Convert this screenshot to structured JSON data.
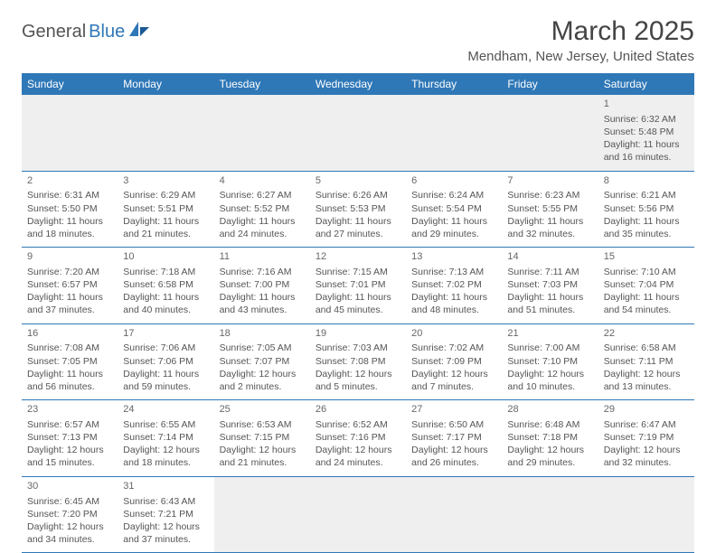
{
  "logo": {
    "text1": "General",
    "text2": "Blue"
  },
  "title": "March 2025",
  "location": "Mendham, New Jersey, United States",
  "colors": {
    "header_bg": "#2f78b7",
    "header_text": "#ffffff",
    "body_text": "#555555",
    "divider": "#2f78b7",
    "empty_bg": "#efefef",
    "page_bg": "#ffffff"
  },
  "day_names": [
    "Sunday",
    "Monday",
    "Tuesday",
    "Wednesday",
    "Thursday",
    "Friday",
    "Saturday"
  ],
  "weeks": [
    [
      null,
      null,
      null,
      null,
      null,
      null,
      {
        "n": "1",
        "sr": "Sunrise: 6:32 AM",
        "ss": "Sunset: 5:48 PM",
        "d1": "Daylight: 11 hours",
        "d2": "and 16 minutes."
      }
    ],
    [
      {
        "n": "2",
        "sr": "Sunrise: 6:31 AM",
        "ss": "Sunset: 5:50 PM",
        "d1": "Daylight: 11 hours",
        "d2": "and 18 minutes."
      },
      {
        "n": "3",
        "sr": "Sunrise: 6:29 AM",
        "ss": "Sunset: 5:51 PM",
        "d1": "Daylight: 11 hours",
        "d2": "and 21 minutes."
      },
      {
        "n": "4",
        "sr": "Sunrise: 6:27 AM",
        "ss": "Sunset: 5:52 PM",
        "d1": "Daylight: 11 hours",
        "d2": "and 24 minutes."
      },
      {
        "n": "5",
        "sr": "Sunrise: 6:26 AM",
        "ss": "Sunset: 5:53 PM",
        "d1": "Daylight: 11 hours",
        "d2": "and 27 minutes."
      },
      {
        "n": "6",
        "sr": "Sunrise: 6:24 AM",
        "ss": "Sunset: 5:54 PM",
        "d1": "Daylight: 11 hours",
        "d2": "and 29 minutes."
      },
      {
        "n": "7",
        "sr": "Sunrise: 6:23 AM",
        "ss": "Sunset: 5:55 PM",
        "d1": "Daylight: 11 hours",
        "d2": "and 32 minutes."
      },
      {
        "n": "8",
        "sr": "Sunrise: 6:21 AM",
        "ss": "Sunset: 5:56 PM",
        "d1": "Daylight: 11 hours",
        "d2": "and 35 minutes."
      }
    ],
    [
      {
        "n": "9",
        "sr": "Sunrise: 7:20 AM",
        "ss": "Sunset: 6:57 PM",
        "d1": "Daylight: 11 hours",
        "d2": "and 37 minutes."
      },
      {
        "n": "10",
        "sr": "Sunrise: 7:18 AM",
        "ss": "Sunset: 6:58 PM",
        "d1": "Daylight: 11 hours",
        "d2": "and 40 minutes."
      },
      {
        "n": "11",
        "sr": "Sunrise: 7:16 AM",
        "ss": "Sunset: 7:00 PM",
        "d1": "Daylight: 11 hours",
        "d2": "and 43 minutes."
      },
      {
        "n": "12",
        "sr": "Sunrise: 7:15 AM",
        "ss": "Sunset: 7:01 PM",
        "d1": "Daylight: 11 hours",
        "d2": "and 45 minutes."
      },
      {
        "n": "13",
        "sr": "Sunrise: 7:13 AM",
        "ss": "Sunset: 7:02 PM",
        "d1": "Daylight: 11 hours",
        "d2": "and 48 minutes."
      },
      {
        "n": "14",
        "sr": "Sunrise: 7:11 AM",
        "ss": "Sunset: 7:03 PM",
        "d1": "Daylight: 11 hours",
        "d2": "and 51 minutes."
      },
      {
        "n": "15",
        "sr": "Sunrise: 7:10 AM",
        "ss": "Sunset: 7:04 PM",
        "d1": "Daylight: 11 hours",
        "d2": "and 54 minutes."
      }
    ],
    [
      {
        "n": "16",
        "sr": "Sunrise: 7:08 AM",
        "ss": "Sunset: 7:05 PM",
        "d1": "Daylight: 11 hours",
        "d2": "and 56 minutes."
      },
      {
        "n": "17",
        "sr": "Sunrise: 7:06 AM",
        "ss": "Sunset: 7:06 PM",
        "d1": "Daylight: 11 hours",
        "d2": "and 59 minutes."
      },
      {
        "n": "18",
        "sr": "Sunrise: 7:05 AM",
        "ss": "Sunset: 7:07 PM",
        "d1": "Daylight: 12 hours",
        "d2": "and 2 minutes."
      },
      {
        "n": "19",
        "sr": "Sunrise: 7:03 AM",
        "ss": "Sunset: 7:08 PM",
        "d1": "Daylight: 12 hours",
        "d2": "and 5 minutes."
      },
      {
        "n": "20",
        "sr": "Sunrise: 7:02 AM",
        "ss": "Sunset: 7:09 PM",
        "d1": "Daylight: 12 hours",
        "d2": "and 7 minutes."
      },
      {
        "n": "21",
        "sr": "Sunrise: 7:00 AM",
        "ss": "Sunset: 7:10 PM",
        "d1": "Daylight: 12 hours",
        "d2": "and 10 minutes."
      },
      {
        "n": "22",
        "sr": "Sunrise: 6:58 AM",
        "ss": "Sunset: 7:11 PM",
        "d1": "Daylight: 12 hours",
        "d2": "and 13 minutes."
      }
    ],
    [
      {
        "n": "23",
        "sr": "Sunrise: 6:57 AM",
        "ss": "Sunset: 7:13 PM",
        "d1": "Daylight: 12 hours",
        "d2": "and 15 minutes."
      },
      {
        "n": "24",
        "sr": "Sunrise: 6:55 AM",
        "ss": "Sunset: 7:14 PM",
        "d1": "Daylight: 12 hours",
        "d2": "and 18 minutes."
      },
      {
        "n": "25",
        "sr": "Sunrise: 6:53 AM",
        "ss": "Sunset: 7:15 PM",
        "d1": "Daylight: 12 hours",
        "d2": "and 21 minutes."
      },
      {
        "n": "26",
        "sr": "Sunrise: 6:52 AM",
        "ss": "Sunset: 7:16 PM",
        "d1": "Daylight: 12 hours",
        "d2": "and 24 minutes."
      },
      {
        "n": "27",
        "sr": "Sunrise: 6:50 AM",
        "ss": "Sunset: 7:17 PM",
        "d1": "Daylight: 12 hours",
        "d2": "and 26 minutes."
      },
      {
        "n": "28",
        "sr": "Sunrise: 6:48 AM",
        "ss": "Sunset: 7:18 PM",
        "d1": "Daylight: 12 hours",
        "d2": "and 29 minutes."
      },
      {
        "n": "29",
        "sr": "Sunrise: 6:47 AM",
        "ss": "Sunset: 7:19 PM",
        "d1": "Daylight: 12 hours",
        "d2": "and 32 minutes."
      }
    ],
    [
      {
        "n": "30",
        "sr": "Sunrise: 6:45 AM",
        "ss": "Sunset: 7:20 PM",
        "d1": "Daylight: 12 hours",
        "d2": "and 34 minutes."
      },
      {
        "n": "31",
        "sr": "Sunrise: 6:43 AM",
        "ss": "Sunset: 7:21 PM",
        "d1": "Daylight: 12 hours",
        "d2": "and 37 minutes."
      },
      null,
      null,
      null,
      null,
      null
    ]
  ]
}
